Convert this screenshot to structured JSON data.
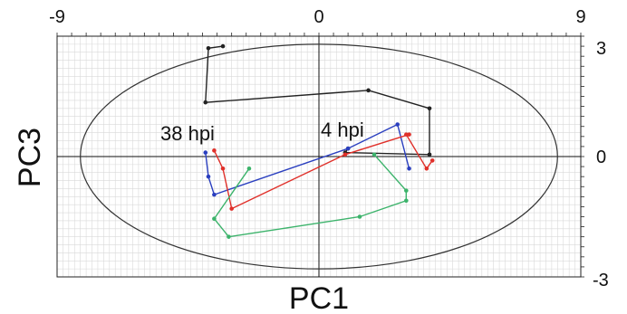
{
  "chart_data": {
    "type": "line",
    "title": "",
    "xlabel": "PC1",
    "ylabel": "PC3",
    "xlim": [
      -9,
      9
    ],
    "ylim": [
      -3,
      3
    ],
    "x_ticks": [
      "-9",
      "0",
      "9"
    ],
    "y_ticks": [
      "3",
      "0",
      "-3"
    ],
    "grid": true,
    "confidence_ellipse": {
      "cx": 0,
      "cy": 0,
      "rx": 8.2,
      "ry": 2.8
    },
    "annotations": [
      {
        "text": "38 hpi",
        "x": -5.4,
        "y": 0.45
      },
      {
        "text": "4 hpi",
        "x": 0.1,
        "y": 0.45
      }
    ],
    "series": [
      {
        "color": "#222222",
        "points": [
          [
            1.0,
            0.2
          ],
          [
            0.9,
            0.1
          ],
          [
            3.8,
            0.05
          ],
          [
            3.8,
            1.2
          ],
          [
            1.7,
            1.65
          ],
          [
            -3.9,
            1.35
          ],
          [
            -3.8,
            2.7
          ],
          [
            -3.3,
            2.75
          ]
        ]
      },
      {
        "color": "#2a3fbf",
        "points": [
          [
            3.1,
            -0.3
          ],
          [
            2.7,
            0.8
          ],
          [
            1.0,
            0.2
          ],
          [
            -3.6,
            -0.95
          ],
          [
            -3.8,
            -0.5
          ],
          [
            -3.9,
            0.1
          ]
        ]
      },
      {
        "color": "#e0302a",
        "points": [
          [
            3.9,
            -0.1
          ],
          [
            3.7,
            -0.3
          ],
          [
            3.0,
            0.55
          ],
          [
            3.1,
            0.55
          ],
          [
            0.9,
            0.05
          ],
          [
            -3.0,
            -1.3
          ],
          [
            -3.3,
            -0.3
          ],
          [
            -3.6,
            0.15
          ]
        ]
      },
      {
        "color": "#3cb36b",
        "points": [
          [
            1.9,
            0.05
          ],
          [
            3.0,
            -0.85
          ],
          [
            3.0,
            -1.1
          ],
          [
            1.4,
            -1.5
          ],
          [
            -3.1,
            -2.0
          ],
          [
            -3.6,
            -1.55
          ],
          [
            -2.4,
            -0.3
          ]
        ]
      }
    ]
  }
}
